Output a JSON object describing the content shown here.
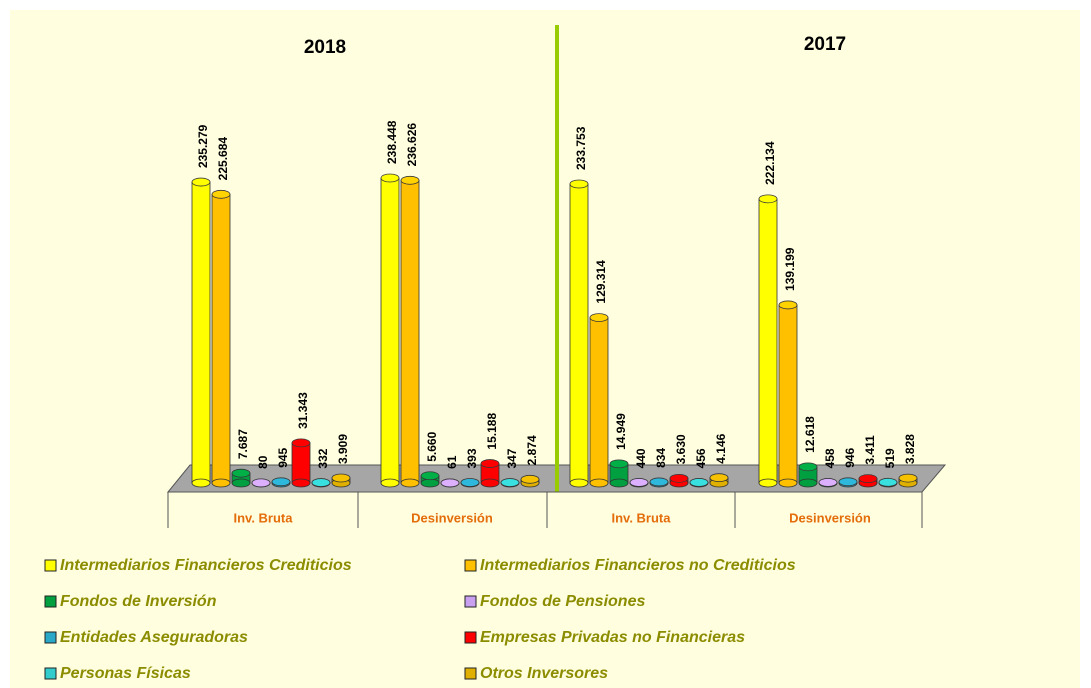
{
  "chart_data": {
    "type": "bar",
    "annotations": [
      "2018",
      "2017"
    ],
    "categories": [
      "Inv. Bruta",
      "Desinversión",
      "Inv. Bruta",
      "Desinversión"
    ],
    "series": [
      {
        "name": "Intermediarios Financieros Crediticios",
        "color": "#ffff00",
        "values": [
          235279,
          238448,
          233753,
          222134
        ],
        "value_labels": [
          "235.279",
          "238.448",
          "233.753",
          "222.134"
        ]
      },
      {
        "name": "Intermediarios Financieros no Crediticios",
        "color": "#ffc000",
        "values": [
          225684,
          236626,
          129314,
          139199
        ],
        "value_labels": [
          "225.684",
          "236.626",
          "129.314",
          "139.199"
        ]
      },
      {
        "name": "Fondos de Inversión",
        "color": "#00a040",
        "values": [
          7687,
          5660,
          14949,
          12618
        ],
        "value_labels": [
          "7.687",
          "5.660",
          "14.949",
          "12.618"
        ]
      },
      {
        "name": "Fondos de Pensiones",
        "color": "#c9a0f0",
        "values": [
          80,
          61,
          440,
          458
        ],
        "value_labels": [
          "80",
          "61",
          "440",
          "458"
        ]
      },
      {
        "name": "Entidades Aseguradoras",
        "color": "#2aa8c8",
        "values": [
          945,
          393,
          834,
          946
        ],
        "value_labels": [
          "945",
          "393",
          "834",
          "946"
        ]
      },
      {
        "name": "Empresas Privadas no Financieras",
        "color": "#ff0000",
        "values": [
          31343,
          15188,
          3630,
          3411
        ],
        "value_labels": [
          "31.343",
          "15.188",
          "3.630",
          "3.411"
        ]
      },
      {
        "name": "Personas Físicas",
        "color": "#33cccc",
        "values": [
          332,
          347,
          456,
          519
        ],
        "value_labels": [
          "332",
          "347",
          "456",
          "519"
        ]
      },
      {
        "name": "Otros Inversores",
        "color": "#e0b000",
        "values": [
          3909,
          2874,
          4146,
          3828
        ],
        "value_labels": [
          "3.909",
          "2.874",
          "4.146",
          "3.828"
        ]
      }
    ]
  }
}
